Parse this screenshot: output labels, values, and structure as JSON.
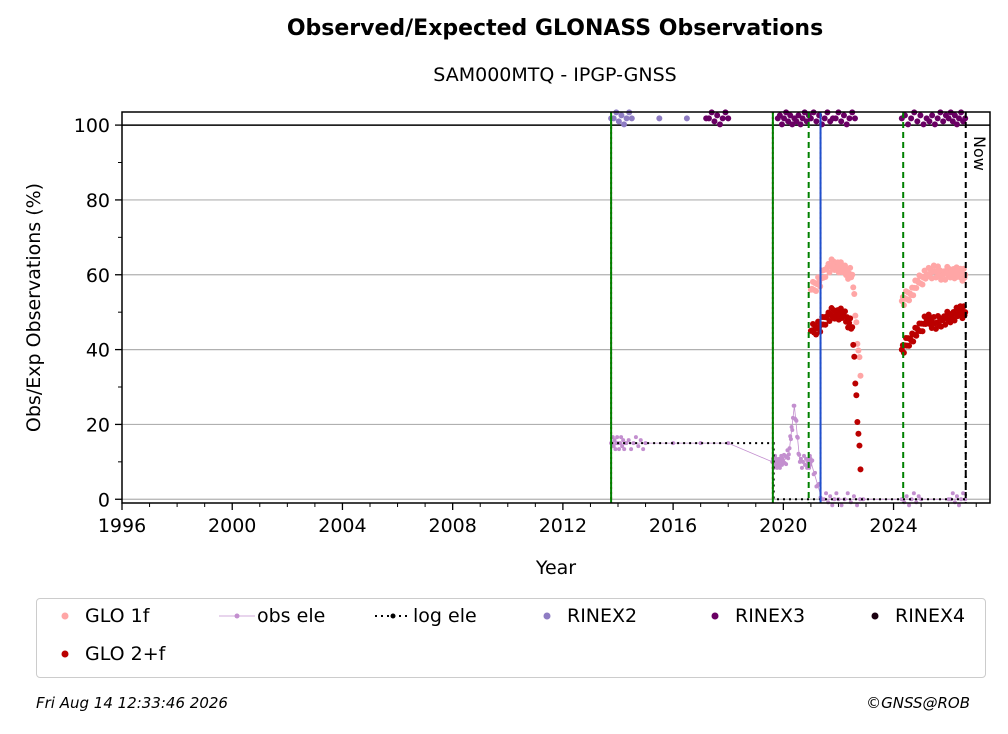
{
  "chart_data": {
    "type": "scatter",
    "title": "Observed/Expected GLONASS Observations",
    "subtitle": "SAM000MTQ - IPGP-GNSS",
    "xlabel": "Year",
    "ylabel": "Obs/Exp Observations (%)",
    "xlim": [
      1996,
      2027.5
    ],
    "ylim": [
      -1,
      103.5
    ],
    "x_ticks": [
      1996,
      2000,
      2004,
      2008,
      2012,
      2016,
      2020,
      2024
    ],
    "y_ticks": [
      0,
      20,
      40,
      60,
      80,
      100
    ],
    "grid": "horizontal",
    "legend_position": "bottom",
    "now_label": "Now",
    "now_x": 2026.62,
    "series": [
      {
        "name": "GLO 1f",
        "color": "#ffa6a6",
        "style": "points",
        "x": [
          2021.0,
          2021.3,
          2021.6,
          2021.9,
          2022.2,
          2022.5,
          2022.8,
          2024.3,
          2024.6,
          2024.9,
          2025.2,
          2025.5,
          2025.8,
          2026.1,
          2026.4,
          2026.6
        ],
        "y": [
          56,
          58,
          62,
          63,
          61,
          60,
          33,
          53,
          55,
          58,
          60,
          61,
          60,
          61,
          60,
          60
        ]
      },
      {
        "name": "GLO 2+f",
        "color": "#bb0000",
        "style": "points",
        "x": [
          2021.0,
          2021.3,
          2021.6,
          2021.9,
          2022.2,
          2022.5,
          2022.8,
          2024.3,
          2024.6,
          2024.9,
          2025.2,
          2025.5,
          2025.8,
          2026.1,
          2026.4,
          2026.6
        ],
        "y": [
          45,
          46,
          49,
          50,
          49,
          46,
          8,
          40,
          43,
          45,
          48,
          47,
          48,
          49,
          50,
          50
        ]
      },
      {
        "name": "obs ele",
        "color": "#c38fcf",
        "style": "line-points",
        "x": [
          2013.75,
          2014.0,
          2014.3,
          2015.0,
          2016.0,
          2017.0,
          2018.0,
          2019.6,
          2019.8,
          2020.0,
          2020.2,
          2020.4,
          2020.6,
          2020.9,
          2021.0,
          2021.4,
          2022.0,
          2022.9,
          2024.3,
          2025.0,
          2026.0,
          2026.6
        ],
        "y": [
          15,
          15,
          15,
          15,
          15,
          15,
          15,
          10,
          10,
          10,
          12,
          25,
          10,
          10,
          10,
          0,
          0,
          0,
          0,
          0,
          0,
          0
        ]
      },
      {
        "name": "log ele",
        "color": "#000000",
        "style": "dotted-step",
        "x": [
          2013.75,
          2019.65,
          2019.65,
          2026.62,
          2026.62
        ],
        "y": [
          15,
          15,
          0,
          0,
          45
        ]
      },
      {
        "name": "RINEX2",
        "color": "#8e7cc3",
        "style": "points",
        "x": [
          2013.75,
          2014.5,
          2015.5,
          2016.5
        ],
        "y": [
          101.8,
          101.8,
          101.8,
          101.8
        ]
      },
      {
        "name": "RINEX3",
        "color": "#6a0064",
        "style": "points",
        "x": [
          2017.2,
          2018.0,
          2019.8,
          2020.4,
          2021.0,
          2021.8,
          2022.6,
          2024.3,
          2025.2,
          2026.0,
          2026.6
        ],
        "y": [
          101.8,
          101.8,
          101.8,
          101.8,
          101.8,
          101.8,
          101.8,
          101.8,
          101.8,
          101.8,
          101.8
        ]
      },
      {
        "name": "RINEX4",
        "color": "#1a0010",
        "style": "points",
        "x": [],
        "y": []
      }
    ],
    "vertical_lines": [
      {
        "x": 2013.75,
        "color": "#cc0000",
        "style": "dotted"
      },
      {
        "x": 2013.75,
        "color": "#008000",
        "style": "solid"
      },
      {
        "x": 2019.62,
        "color": "#cc0000",
        "style": "dotted"
      },
      {
        "x": 2019.62,
        "color": "#008000",
        "style": "solid"
      },
      {
        "x": 2020.92,
        "color": "#008000",
        "style": "dashed"
      },
      {
        "x": 2021.35,
        "color": "#cc0000",
        "style": "dotted"
      },
      {
        "x": 2021.35,
        "color": "#1f4fcc",
        "style": "solid"
      },
      {
        "x": 2024.35,
        "color": "#008000",
        "style": "dashed"
      },
      {
        "x": 2026.62,
        "color": "#000000",
        "style": "dashed"
      }
    ]
  },
  "footer": {
    "timestamp": "Fri Aug 14 12:33:46 2026",
    "credit": "©GNSS@ROB"
  }
}
